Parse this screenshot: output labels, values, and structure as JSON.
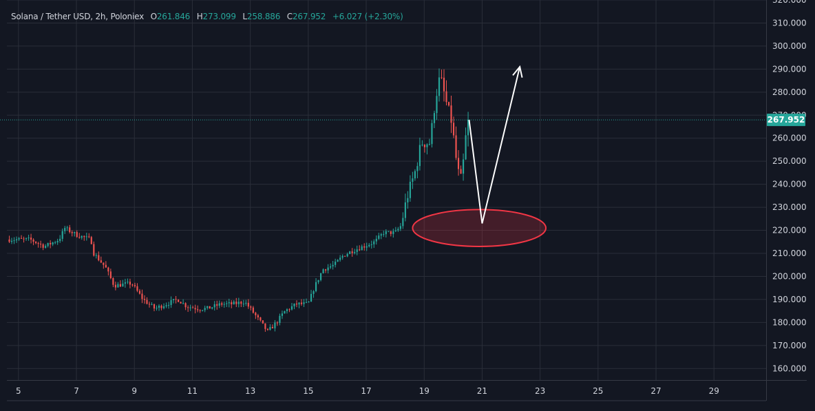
{
  "legend": {
    "symbol": "Solana / Tether USD, 2h, Poloniex",
    "open_label": "O",
    "open": "261.846",
    "high_label": "H",
    "high": "273.099",
    "low_label": "L",
    "low": "258.886",
    "close_label": "C",
    "close": "267.952",
    "change": "+6.027 (+2.30%)"
  },
  "colors": {
    "background": "#131722",
    "grid": "#2a2e39",
    "up": "#26a69a",
    "down": "#ef5350",
    "text": "#d1d4dc",
    "last_price": "#26a69a",
    "ellipse_stroke": "#f23645",
    "arrow": "#ffffff"
  },
  "chart_data": {
    "type": "candlestick",
    "last_price": 267.952,
    "ylim": [
      155,
      320
    ],
    "xlim": [
      4.6,
      30.8
    ],
    "y_ticks": [
      160,
      170,
      180,
      190,
      200,
      210,
      220,
      230,
      240,
      250,
      260,
      270,
      280,
      290,
      300,
      310,
      320
    ],
    "y_tick_labels": [
      "160.000",
      "170.000",
      "180.000",
      "190.000",
      "200.000",
      "210.000",
      "220.000",
      "230.000",
      "240.000",
      "250.000",
      "260.000",
      "270.000",
      "280.000",
      "290.000",
      "300.000",
      "310.000",
      "320.000"
    ],
    "x_ticks": [
      5,
      7,
      9,
      11,
      13,
      15,
      17,
      19,
      21,
      23,
      25,
      27,
      29
    ],
    "x_tick_labels": [
      "5",
      "7",
      "9",
      "11",
      "13",
      "15",
      "17",
      "19",
      "21",
      "23",
      "25",
      "27",
      "29"
    ],
    "grid": true,
    "path_points": [
      [
        4.6,
        216
      ],
      [
        5.4,
        216
      ],
      [
        5.9,
        213
      ],
      [
        6.4,
        216
      ],
      [
        6.6,
        221
      ],
      [
        7.0,
        218
      ],
      [
        7.5,
        216
      ],
      [
        7.6,
        210
      ],
      [
        8.0,
        204
      ],
      [
        8.3,
        196
      ],
      [
        8.9,
        197
      ],
      [
        9.3,
        190
      ],
      [
        9.7,
        186
      ],
      [
        10.1,
        188
      ],
      [
        10.5,
        190
      ],
      [
        10.8,
        187
      ],
      [
        11.2,
        186
      ],
      [
        11.5,
        186
      ],
      [
        12.0,
        188
      ],
      [
        12.4,
        188
      ],
      [
        12.8,
        189
      ],
      [
        13.0,
        186
      ],
      [
        13.3,
        181
      ],
      [
        13.6,
        176
      ],
      [
        13.9,
        180
      ],
      [
        14.2,
        185
      ],
      [
        14.6,
        188
      ],
      [
        15.0,
        188
      ],
      [
        15.2,
        195
      ],
      [
        15.5,
        203
      ],
      [
        15.9,
        205
      ],
      [
        16.2,
        209
      ],
      [
        16.5,
        211
      ],
      [
        16.9,
        213
      ],
      [
        17.3,
        215
      ],
      [
        17.6,
        219
      ],
      [
        18.0,
        219
      ],
      [
        18.2,
        222
      ],
      [
        18.4,
        234
      ],
      [
        18.7,
        246
      ],
      [
        18.9,
        258
      ],
      [
        19.2,
        258
      ],
      [
        19.4,
        278
      ],
      [
        19.55,
        287
      ],
      [
        19.75,
        276
      ],
      [
        19.95,
        267
      ],
      [
        20.15,
        246
      ],
      [
        20.3,
        241
      ],
      [
        20.4,
        258
      ],
      [
        20.55,
        267.952
      ]
    ],
    "annotations": {
      "ellipse": {
        "cx": 20.9,
        "cy": 221,
        "rx": 2.3,
        "ry": 8
      },
      "arrow": [
        [
          20.55,
          268
        ],
        [
          21.0,
          223
        ],
        [
          22.3,
          291
        ]
      ]
    }
  }
}
